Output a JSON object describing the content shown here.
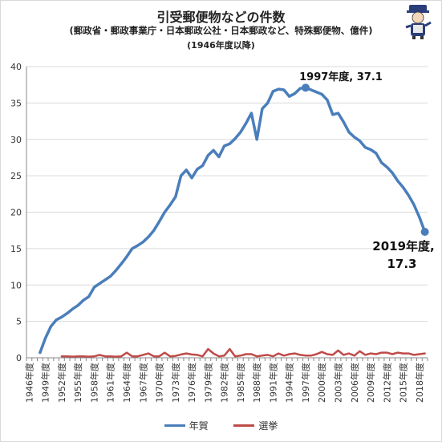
{
  "header": {
    "title": "引受郵便物などの件数",
    "subtitle": "(郵政省・郵政事業庁・日本郵政公社・日本郵政など、特殊郵便物、億件)",
    "subtitle2": "(1946年度以降)"
  },
  "legend": {
    "series1": "年賀",
    "series2": "選挙"
  },
  "annotations": {
    "peak": "1997年度, 37.1",
    "last_line1": "2019年度,",
    "last_line2": "17.3"
  },
  "colors": {
    "series1": "#4a7ebb",
    "series2": "#be4b48",
    "grid": "#d9d9d9",
    "axis": "#888888"
  },
  "chart_data": {
    "type": "line",
    "ylim": [
      0,
      40
    ],
    "yticks": [
      0,
      5,
      10,
      15,
      20,
      25,
      30,
      35,
      40
    ],
    "xlabels": [
      "1946年度",
      "1949年度",
      "1952年度",
      "1955年度",
      "1958年度",
      "1961年度",
      "1964年度",
      "1967年度",
      "1970年度",
      "1973年度",
      "1976年度",
      "1979年度",
      "1982年度",
      "1985年度",
      "1988年度",
      "1991年度",
      "1994年度",
      "1997年度",
      "2000年度",
      "2003年度",
      "2006年度",
      "2009年度",
      "2012年度",
      "2015年度",
      "2018年度"
    ],
    "x_start": 1946,
    "x_end": 2019,
    "series": [
      {
        "name": "年賀",
        "x": [
          1948,
          1949,
          1950,
          1951,
          1952,
          1953,
          1954,
          1955,
          1956,
          1957,
          1958,
          1959,
          1960,
          1961,
          1962,
          1963,
          1964,
          1965,
          1966,
          1967,
          1968,
          1969,
          1970,
          1971,
          1972,
          1973,
          1974,
          1975,
          1976,
          1977,
          1978,
          1979,
          1980,
          1981,
          1982,
          1983,
          1984,
          1985,
          1986,
          1987,
          1988,
          1989,
          1990,
          1991,
          1992,
          1993,
          1994,
          1995,
          1996,
          1997,
          1998,
          1999,
          2000,
          2001,
          2002,
          2003,
          2004,
          2005,
          2006,
          2007,
          2008,
          2009,
          2010,
          2011,
          2012,
          2013,
          2014,
          2015,
          2016,
          2017,
          2018,
          2019
        ],
        "values": [
          0.7,
          2.7,
          4.3,
          5.2,
          5.6,
          6.1,
          6.7,
          7.2,
          7.9,
          8.4,
          9.7,
          10.2,
          10.7,
          11.2,
          12.0,
          12.9,
          13.9,
          15.0,
          15.4,
          15.9,
          16.6,
          17.5,
          18.7,
          20.0,
          21.0,
          22.1,
          25.0,
          25.8,
          24.7,
          25.9,
          26.4,
          27.8,
          28.5,
          27.6,
          29.1,
          29.4,
          30.1,
          31.0,
          32.2,
          33.6,
          30.0,
          34.2,
          35.0,
          36.6,
          36.9,
          36.8,
          35.9,
          36.3,
          37.0,
          37.1,
          36.8,
          36.5,
          36.2,
          35.4,
          33.4,
          33.6,
          32.4,
          31.0,
          30.3,
          29.8,
          28.9,
          28.6,
          28.1,
          26.8,
          26.2,
          25.4,
          24.3,
          23.4,
          22.3,
          21.0,
          19.3,
          17.3
        ]
      },
      {
        "name": "選挙",
        "x": [
          1952,
          1953,
          1954,
          1955,
          1956,
          1957,
          1958,
          1959,
          1960,
          1961,
          1962,
          1963,
          1964,
          1965,
          1966,
          1967,
          1968,
          1969,
          1970,
          1971,
          1972,
          1973,
          1974,
          1975,
          1976,
          1977,
          1978,
          1979,
          1980,
          1981,
          1982,
          1983,
          1984,
          1985,
          1986,
          1987,
          1988,
          1989,
          1990,
          1991,
          1992,
          1993,
          1994,
          1995,
          1996,
          1997,
          1998,
          1999,
          2000,
          2001,
          2002,
          2003,
          2004,
          2005,
          2006,
          2007,
          2008,
          2009,
          2010,
          2011,
          2012,
          2013,
          2014,
          2015,
          2016,
          2017,
          2018,
          2019
        ],
        "values": [
          0.2,
          0.2,
          0.15,
          0.2,
          0.2,
          0.15,
          0.2,
          0.4,
          0.2,
          0.2,
          0.15,
          0.2,
          0.7,
          0.2,
          0.2,
          0.4,
          0.6,
          0.2,
          0.2,
          0.7,
          0.2,
          0.25,
          0.45,
          0.6,
          0.45,
          0.4,
          0.2,
          1.2,
          0.6,
          0.2,
          0.3,
          1.2,
          0.2,
          0.3,
          0.5,
          0.5,
          0.2,
          0.3,
          0.4,
          0.2,
          0.6,
          0.3,
          0.5,
          0.6,
          0.4,
          0.3,
          0.3,
          0.5,
          0.8,
          0.5,
          0.4,
          1.0,
          0.4,
          0.6,
          0.3,
          0.9,
          0.4,
          0.6,
          0.5,
          0.7,
          0.7,
          0.5,
          0.7,
          0.6,
          0.6,
          0.4,
          0.5,
          0.6
        ]
      }
    ],
    "peak_point": {
      "x": 1997,
      "y": 37.1
    },
    "last_point": {
      "x": 2019,
      "y": 17.3
    }
  }
}
